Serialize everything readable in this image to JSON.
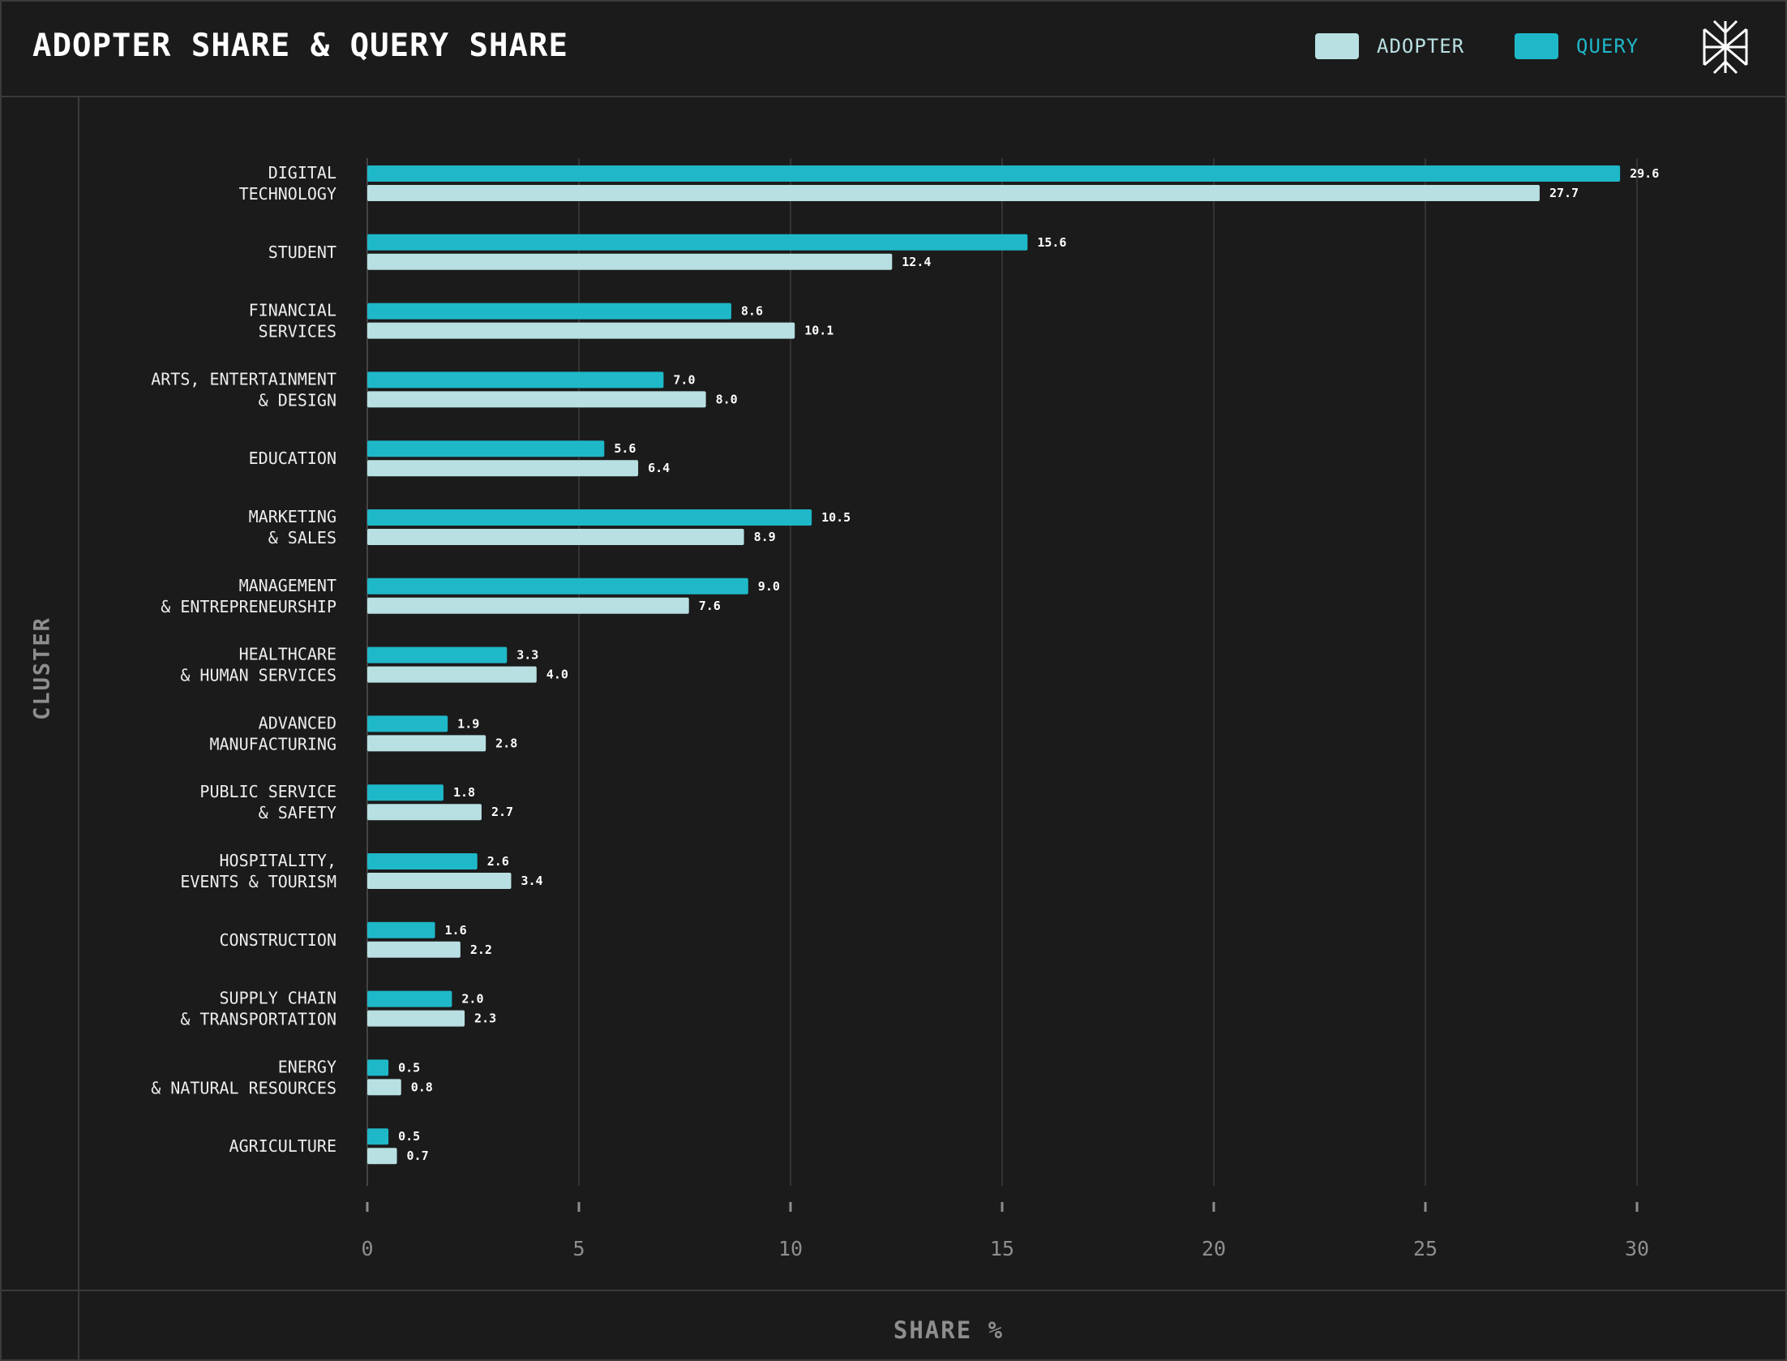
{
  "header": {
    "title": "ADOPTER SHARE & QUERY SHARE",
    "legend": [
      {
        "label": "ADOPTER",
        "color": "#b8e0e2"
      },
      {
        "label": "QUERY",
        "color": "#1fb8c9"
      }
    ],
    "logo_icon": "asterisk-star-logo-icon"
  },
  "chart_data": {
    "type": "bar",
    "orientation": "horizontal",
    "title": "ADOPTER SHARE & QUERY SHARE",
    "xlabel": "SHARE %",
    "ylabel": "CLUSTER",
    "xlim": [
      0,
      30
    ],
    "xticks": [
      "0",
      "5",
      "10",
      "15",
      "20",
      "25",
      "30"
    ],
    "grid": true,
    "legend_position": "top-right",
    "categories": [
      [
        "DIGITAL",
        "TECHNOLOGY"
      ],
      [
        "STUDENT"
      ],
      [
        "FINANCIAL",
        "SERVICES"
      ],
      [
        "ARTS, ENTERTAINMENT",
        "& DESIGN"
      ],
      [
        "EDUCATION"
      ],
      [
        "MARKETING",
        "& SALES"
      ],
      [
        "MANAGEMENT",
        "& ENTREPRENEURSHIP"
      ],
      [
        "HEALTHCARE",
        "& HUMAN SERVICES"
      ],
      [
        "ADVANCED",
        "MANUFACTURING"
      ],
      [
        "PUBLIC SERVICE",
        "& SAFETY"
      ],
      [
        "HOSPITALITY,",
        "EVENTS & TOURISM"
      ],
      [
        "CONSTRUCTION"
      ],
      [
        "SUPPLY CHAIN",
        "& TRANSPORTATION"
      ],
      [
        "ENERGY",
        "& NATURAL RESOURCES"
      ],
      [
        "AGRICULTURE"
      ]
    ],
    "series": [
      {
        "name": "QUERY",
        "color": "#1fb8c9",
        "values": [
          29.6,
          15.6,
          8.6,
          7.0,
          5.6,
          10.5,
          9.0,
          3.3,
          1.9,
          1.8,
          2.6,
          1.6,
          2.0,
          0.5,
          0.5
        ]
      },
      {
        "name": "ADOPTER",
        "color": "#b8e0e2",
        "values": [
          27.7,
          12.4,
          10.1,
          8.0,
          6.4,
          8.9,
          7.6,
          4.0,
          2.8,
          2.7,
          3.4,
          2.2,
          2.3,
          0.8,
          0.7
        ]
      }
    ]
  }
}
